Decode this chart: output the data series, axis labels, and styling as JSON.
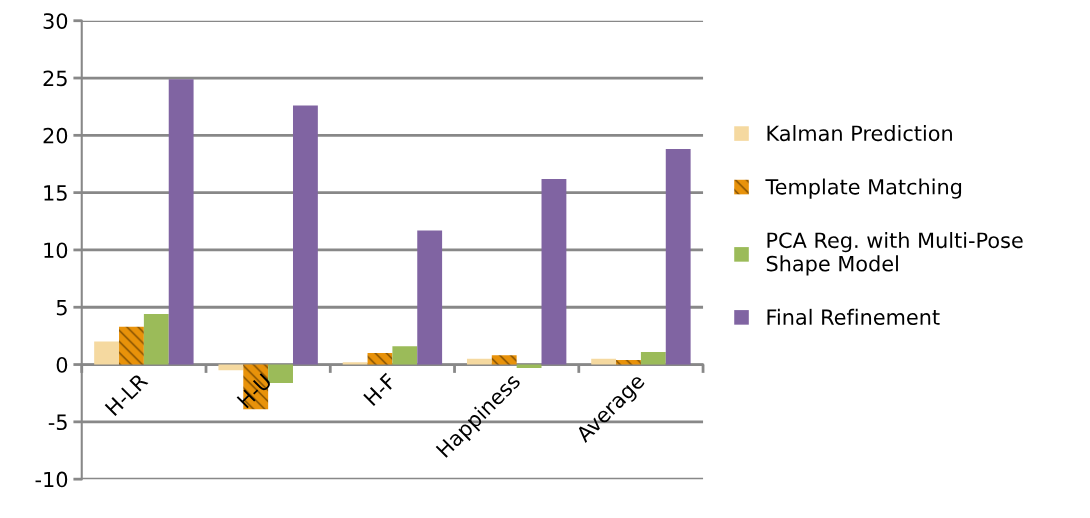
{
  "chart_data": {
    "type": "bar",
    "categories": [
      "H-LR",
      "H-U",
      "H-F",
      "Happiness",
      "Average"
    ],
    "series": [
      {
        "name": "Kalman Prediction",
        "color": "#f5d9a0",
        "values": [
          2.0,
          -0.5,
          0.2,
          0.5,
          0.5
        ]
      },
      {
        "name": "Template Matching",
        "color": "#e8920a",
        "values": [
          3.3,
          -3.9,
          1.0,
          0.8,
          0.4
        ]
      },
      {
        "name": "PCA Reg. with Multi-Pose\nShape Model",
        "color": "#9bbb59",
        "values": [
          4.4,
          -1.6,
          1.6,
          -0.3,
          1.1
        ]
      },
      {
        "name": "Final Refinement",
        "color": "#8064a2",
        "values": [
          24.9,
          22.6,
          11.7,
          16.2,
          18.8
        ]
      }
    ],
    "ylim": [
      -10,
      30
    ],
    "yticks": [
      -10,
      -5,
      0,
      5,
      10,
      15,
      20,
      25,
      30
    ],
    "grid": "y",
    "legend": "right"
  }
}
